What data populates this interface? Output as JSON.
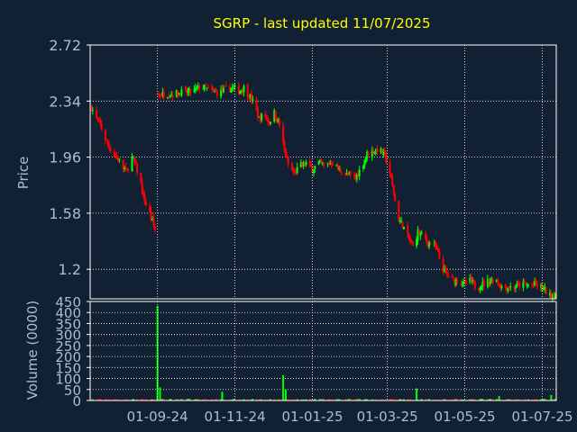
{
  "title": "SGRP - last updated 11/07/2025",
  "colors": {
    "background": "#112033",
    "axis": "#ffffff",
    "tick_label": "#a9bed6",
    "title": "#ffff00",
    "up": "#00ff00",
    "down": "#ff0000",
    "grid": "#ffffff"
  },
  "chart_data": [
    {
      "type": "candlestick",
      "ylabel": "Price",
      "ylim": [
        1.0,
        2.72
      ],
      "yticks": [
        "2.72",
        "2.34",
        "1.96",
        "1.58",
        "1.2"
      ],
      "ytick_values": [
        2.72,
        2.34,
        1.96,
        1.58,
        1.2
      ],
      "x_dates": [
        "01-09-24",
        "01-11-24",
        "01-01-25",
        "01-03-25",
        "01-05-25",
        "01-07-25"
      ],
      "grid": true,
      "series_close_path": [
        [
          "2024-07-11",
          2.3
        ],
        [
          "2024-07-14",
          2.23
        ],
        [
          "2024-07-18",
          2.18
        ],
        [
          "2024-07-21",
          2.1
        ],
        [
          "2024-07-24",
          2.05
        ],
        [
          "2024-07-28",
          1.98
        ],
        [
          "2024-08-01",
          1.95
        ],
        [
          "2024-08-04",
          1.9
        ],
        [
          "2024-08-08",
          1.86
        ],
        [
          "2024-08-11",
          1.97
        ],
        [
          "2024-08-14",
          1.92
        ],
        [
          "2024-08-18",
          1.82
        ],
        [
          "2024-08-21",
          1.68
        ],
        [
          "2024-08-25",
          1.6
        ],
        [
          "2024-08-28",
          1.52
        ],
        [
          "2024-08-31",
          1.44
        ],
        [
          "2024-09-01",
          2.38
        ],
        [
          "2024-09-07",
          2.39
        ],
        [
          "2024-09-14",
          2.39
        ],
        [
          "2024-09-21",
          2.4
        ],
        [
          "2024-09-28",
          2.4
        ],
        [
          "2024-10-05",
          2.44
        ],
        [
          "2024-10-10",
          2.42
        ],
        [
          "2024-10-15",
          2.4
        ],
        [
          "2024-10-20",
          2.4
        ],
        [
          "2024-10-25",
          2.42
        ],
        [
          "2024-10-30",
          2.43
        ],
        [
          "2024-11-04",
          2.41
        ],
        [
          "2024-11-08",
          2.43
        ],
        [
          "2024-11-12",
          2.38
        ],
        [
          "2024-11-16",
          2.32
        ],
        [
          "2024-11-20",
          2.22
        ],
        [
          "2024-11-24",
          2.25
        ],
        [
          "2024-11-28",
          2.2
        ],
        [
          "2024-12-02",
          2.26
        ],
        [
          "2024-12-06",
          2.18
        ],
        [
          "2024-12-10",
          2.0
        ],
        [
          "2024-12-14",
          1.88
        ],
        [
          "2024-12-18",
          1.85
        ],
        [
          "2024-12-22",
          1.9
        ],
        [
          "2024-12-27",
          1.92
        ],
        [
          "2025-01-01",
          1.88
        ],
        [
          "2025-01-06",
          1.92
        ],
        [
          "2025-01-11",
          1.9
        ],
        [
          "2025-01-16",
          1.93
        ],
        [
          "2025-01-21",
          1.88
        ],
        [
          "2025-01-26",
          1.85
        ],
        [
          "2025-01-31",
          1.83
        ],
        [
          "2025-02-04",
          1.82
        ],
        [
          "2025-02-09",
          1.9
        ],
        [
          "2025-02-13",
          1.98
        ],
        [
          "2025-02-18",
          2.0
        ],
        [
          "2025-02-22",
          2.02
        ],
        [
          "2025-02-27",
          1.97
        ],
        [
          "2025-03-03",
          1.85
        ],
        [
          "2025-03-06",
          1.72
        ],
        [
          "2025-03-09",
          1.55
        ],
        [
          "2025-03-13",
          1.5
        ],
        [
          "2025-03-17",
          1.42
        ],
        [
          "2025-03-21",
          1.35
        ],
        [
          "2025-03-25",
          1.45
        ],
        [
          "2025-03-29",
          1.42
        ],
        [
          "2025-04-02",
          1.38
        ],
        [
          "2025-04-06",
          1.38
        ],
        [
          "2025-04-10",
          1.3
        ],
        [
          "2025-04-14",
          1.2
        ],
        [
          "2025-04-18",
          1.15
        ],
        [
          "2025-04-22",
          1.12
        ],
        [
          "2025-04-26",
          1.13
        ],
        [
          "2025-04-30",
          1.1
        ],
        [
          "2025-05-05",
          1.12
        ],
        [
          "2025-05-10",
          1.08
        ],
        [
          "2025-05-15",
          1.1
        ],
        [
          "2025-05-20",
          1.12
        ],
        [
          "2025-05-25",
          1.14
        ],
        [
          "2025-05-30",
          1.08
        ],
        [
          "2025-06-04",
          1.08
        ],
        [
          "2025-06-09",
          1.08
        ],
        [
          "2025-06-14",
          1.1
        ],
        [
          "2025-06-19",
          1.09
        ],
        [
          "2025-06-24",
          1.1
        ],
        [
          "2025-06-29",
          1.08
        ],
        [
          "2025-07-03",
          1.06
        ],
        [
          "2025-07-07",
          1.02
        ],
        [
          "2025-07-11",
          1.04
        ]
      ]
    },
    {
      "type": "bar",
      "ylabel": "Volume (0000)",
      "ylim": [
        0,
        450
      ],
      "yticks": [
        "450",
        "400",
        "350",
        "300",
        "250",
        "200",
        "150",
        "100",
        "50",
        "0"
      ],
      "ytick_values": [
        450,
        400,
        350,
        300,
        250,
        200,
        150,
        100,
        50,
        0
      ],
      "spikes": [
        [
          "2024-09-01",
          430
        ],
        [
          "2024-09-03",
          60
        ],
        [
          "2024-10-22",
          40
        ],
        [
          "2024-12-09",
          115
        ],
        [
          "2024-12-11",
          50
        ],
        [
          "2025-03-24",
          55
        ],
        [
          "2025-05-28",
          20
        ],
        [
          "2025-07-08",
          25
        ]
      ],
      "grid": true
    }
  ]
}
